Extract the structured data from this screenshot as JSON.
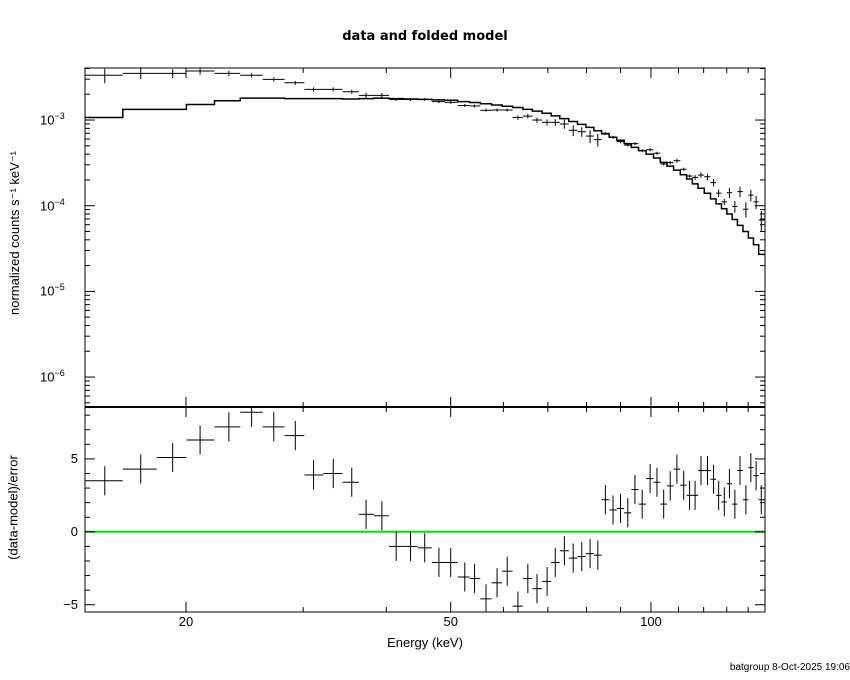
{
  "title": "data and folded model",
  "footer": "batgroup  8-Oct-2025 19:06",
  "chart_data": [
    {
      "type": "line",
      "panel": "top",
      "title": "data and folded model",
      "xlabel": "Energy (keV)",
      "ylabel": "normalized counts s⁻¹ keV⁻¹",
      "xscale": "log",
      "yscale": "log",
      "xlim": [
        14.1,
        148.4
      ],
      "ylim": [
        4.47e-07,
        0.00405
      ],
      "yticks": [
        {
          "value": 0.001,
          "base": "10",
          "exp": "−3"
        },
        {
          "value": 0.0001,
          "base": "10",
          "exp": "−4"
        },
        {
          "value": 1e-05,
          "base": "10",
          "exp": "−5"
        },
        {
          "value": 1e-06,
          "base": "10",
          "exp": "−6"
        }
      ],
      "energy": [
        15.1,
        17.1,
        19.1,
        21.0,
        23.2,
        25.1,
        27.1,
        29.2,
        31.1,
        33.3,
        35.5,
        37.3,
        39.4,
        41.4,
        43.5,
        45.7,
        48.0,
        50.0,
        52.5,
        54.3,
        56.5,
        58.7,
        60.8,
        63.1,
        65.3,
        67.4,
        69.8,
        71.8,
        74.1,
        76.4,
        78.7,
        81.0,
        83.2,
        85.4,
        87.7,
        90.0,
        92.3,
        94.6,
        97.0,
        99.7,
        102.1,
        104.5,
        106.9,
        109.4,
        112.0,
        114.3,
        116.5,
        118.9,
        121.6,
        124.2,
        126.4,
        128.9,
        131.2,
        133.7,
        136.1,
        138.9,
        141.3,
        143.9,
        146.5
      ],
      "series": [
        {
          "name": "data",
          "style": "crosses",
          "values": [
            0.00333,
            0.0035,
            0.0035,
            0.00373,
            0.0035,
            0.00333,
            0.00298,
            0.00272,
            0.00228,
            0.00228,
            0.00214,
            0.00194,
            0.00194,
            0.00174,
            0.00174,
            0.00174,
            0.00164,
            0.00161,
            0.00148,
            0.00146,
            0.0013,
            0.00131,
            0.00131,
            0.00107,
            0.00111,
            0.001,
            0.00094,
            0.00094,
            0.000898,
            0.00076,
            0.00073,
            0.00065,
            0.00059,
            0.0007,
            0.00063,
            0.00056,
            0.00051,
            0.00053,
            0.00044,
            0.00045,
            0.00041,
            0.000307,
            0.000318,
            0.000335,
            0.000266,
            0.000222,
            0.000214,
            0.000228,
            0.000218,
            0.000186,
            0.00014,
            0.000111,
            0.000142,
            9.8e-05,
            0.000146,
            9.1e-05,
            0.000133,
            0.000111,
            6.8e-05
          ]
        },
        {
          "name": "folded model",
          "style": "step",
          "values": [
            0.00107,
            0.00133,
            0.00133,
            0.00152,
            0.00168,
            0.0018,
            0.0018,
            0.00178,
            0.00178,
            0.00178,
            0.00176,
            0.00178,
            0.0018,
            0.00178,
            0.00176,
            0.00174,
            0.00172,
            0.0017,
            0.00164,
            0.0016,
            0.00155,
            0.0015,
            0.00145,
            0.0014,
            0.00133,
            0.00127,
            0.0012,
            0.00112,
            0.00104,
            0.00096,
            0.00089,
            0.00082,
            0.00075,
            0.00069,
            0.00063,
            0.00058,
            0.00053,
            0.00048,
            0.00044,
            0.0004,
            0.00036,
            0.00032,
            0.00029,
            0.00026,
            0.00023,
            0.000205,
            0.00018,
            0.00016,
            0.00014,
            0.00012,
            0.000105,
            9.2e-05,
            8e-05,
            6.9e-05,
            5.9e-05,
            5e-05,
            4.2e-05,
            3.5e-05,
            2.7e-05
          ]
        }
      ]
    },
    {
      "type": "scatter",
      "panel": "bottom",
      "xlabel": "Energy (keV)",
      "ylabel": "(data-model)/error",
      "xscale": "log",
      "xlim": [
        14.1,
        148.4
      ],
      "ylim": [
        -5.5,
        8.56
      ],
      "xticks": [
        {
          "value": 20,
          "label": "20"
        },
        {
          "value": 50,
          "label": "50"
        },
        {
          "value": 100,
          "label": "100"
        }
      ],
      "yticks": [
        {
          "value": 5,
          "label": "5"
        },
        {
          "value": 0,
          "label": "0"
        },
        {
          "value": -5,
          "label": "−5"
        }
      ],
      "zero_line_color": "#00e000",
      "residuals": [
        3.5,
        4.3,
        5.1,
        6.3,
        7.2,
        8.2,
        7.2,
        6.6,
        3.9,
        4.0,
        3.4,
        1.2,
        1.1,
        -1.0,
        -1.0,
        -1.1,
        -2.1,
        -2.1,
        -3.1,
        -3.2,
        -4.6,
        -3.5,
        -2.7,
        -5.1,
        -3.2,
        -3.9,
        -3.4,
        -2.1,
        -1.3,
        -1.8,
        -1.7,
        -1.5,
        -1.6,
        2.2,
        1.5,
        1.6,
        1.3,
        2.9,
        1.9,
        3.65,
        3.4,
        1.9,
        3.15,
        4.3,
        3.2,
        2.5,
        2.5,
        4.2,
        4.2,
        3.6,
        2.5,
        2.05,
        3.3,
        1.9,
        4.2,
        2.2,
        4.4,
        3.85,
        2.2
      ],
      "residual_error": 1
    }
  ]
}
